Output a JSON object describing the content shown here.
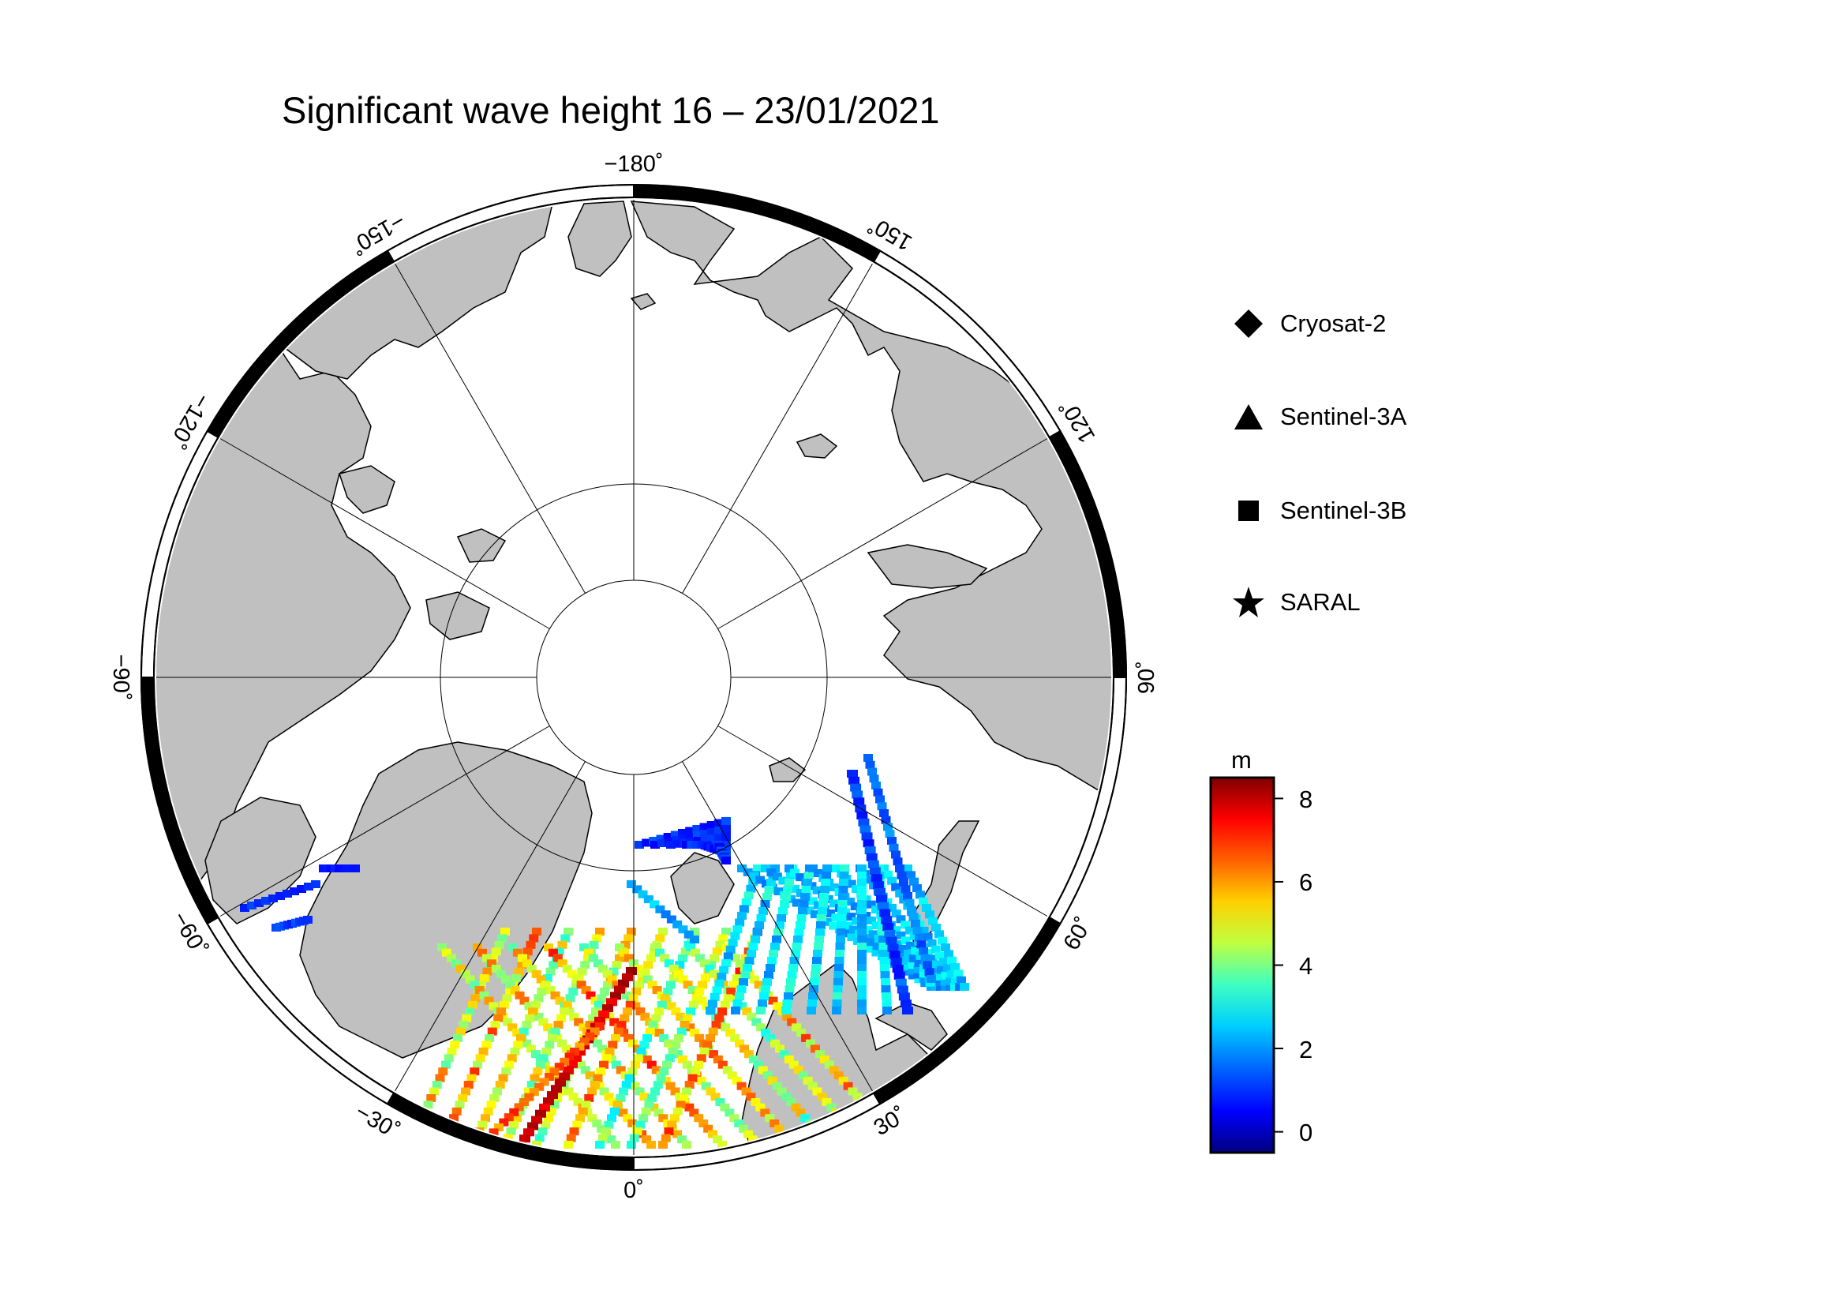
{
  "title": "Significant wave height 16 – 23/01/2021",
  "map": {
    "projection": "north-polar-stereographic",
    "center_lon": 0,
    "top_lon": -180,
    "lon_labels": [
      "−180˚",
      "150˚",
      "120˚",
      "90˚",
      "60˚",
      "30˚",
      "0˚",
      "−30˚",
      "−60˚",
      "−90˚",
      "−120˚",
      "−150˚"
    ],
    "land_color": "#c0c0c0",
    "ocean_color": "#ffffff"
  },
  "legend": {
    "items": [
      {
        "label": "Cryosat-2",
        "marker": "diamond-icon"
      },
      {
        "label": "Sentinel-3A",
        "marker": "triangle-icon"
      },
      {
        "label": "Sentinel-3B",
        "marker": "square-icon"
      },
      {
        "label": "SARAL",
        "marker": "star-icon"
      }
    ]
  },
  "colorbar": {
    "unit": "m",
    "min": -0.5,
    "max": 8.5,
    "ticks": [
      "8",
      "6",
      "4",
      "2",
      "0"
    ],
    "tick_values": [
      8,
      6,
      4,
      2,
      0
    ],
    "colormap": "jet"
  }
}
